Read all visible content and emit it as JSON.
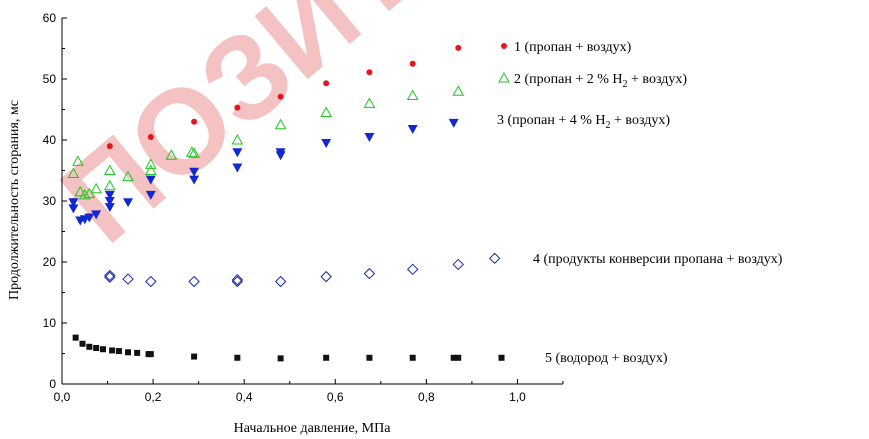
{
  "chart_data": {
    "type": "scatter",
    "title": "",
    "xlabel": "Начальное давление, МПа",
    "ylabel": "Продолжительность сгорания, мс",
    "xlim": [
      0.0,
      1.1
    ],
    "ylim": [
      0,
      60
    ],
    "x_ticks": [
      "0,0",
      "0,2",
      "0,4",
      "0,6",
      "0,8",
      "1,0"
    ],
    "y_ticks": [
      "0",
      "10",
      "20",
      "30",
      "40",
      "50",
      "60"
    ],
    "grid": false,
    "watermark": "ПОЗИТ",
    "series": [
      {
        "name": "1 (пропан + воздух)",
        "label_parts": [
          "1 (пропан + воздух)"
        ],
        "marker": "circle",
        "color": "#e8141e",
        "points": [
          [
            0.025,
            30.0
          ],
          [
            0.105,
            39.0
          ],
          [
            0.195,
            40.5
          ],
          [
            0.29,
            43.0
          ],
          [
            0.385,
            45.3
          ],
          [
            0.48,
            47.1
          ],
          [
            0.58,
            49.3
          ],
          [
            0.675,
            51.1
          ],
          [
            0.77,
            52.5
          ],
          [
            0.87,
            55.1
          ]
        ]
      },
      {
        "name": "2 (пропан + 2 % H2 + воздух)",
        "label_parts": [
          "2 (пропан + 2 % H",
          "2",
          " + воздух)"
        ],
        "marker": "triangle-up-open",
        "color": "#1ec81e",
        "points": [
          [
            0.025,
            34.5
          ],
          [
            0.035,
            36.5
          ],
          [
            0.04,
            31.5
          ],
          [
            0.05,
            31.0
          ],
          [
            0.06,
            31.2
          ],
          [
            0.075,
            32.0
          ],
          [
            0.105,
            32.5
          ],
          [
            0.105,
            35.0
          ],
          [
            0.145,
            34.0
          ],
          [
            0.195,
            35.0
          ],
          [
            0.195,
            36.0
          ],
          [
            0.24,
            37.5
          ],
          [
            0.285,
            38.0
          ],
          [
            0.29,
            37.8
          ],
          [
            0.385,
            40.0
          ],
          [
            0.48,
            42.5
          ],
          [
            0.58,
            44.5
          ],
          [
            0.675,
            46.0
          ],
          [
            0.77,
            47.3
          ],
          [
            0.87,
            48.0
          ]
        ]
      },
      {
        "name": "3 (пропан + 4 % H2 + воздух)",
        "label_parts": [
          "3 (пропан + 4 % H",
          "2",
          " + воздух)"
        ],
        "marker": "triangle-down",
        "color": "#1428d2",
        "points": [
          [
            0.025,
            29.8
          ],
          [
            0.025,
            28.8
          ],
          [
            0.04,
            26.8
          ],
          [
            0.05,
            27.0
          ],
          [
            0.06,
            27.3
          ],
          [
            0.075,
            27.8
          ],
          [
            0.105,
            29.0
          ],
          [
            0.105,
            30.0
          ],
          [
            0.105,
            31.0
          ],
          [
            0.145,
            29.8
          ],
          [
            0.195,
            31.0
          ],
          [
            0.195,
            33.5
          ],
          [
            0.29,
            33.5
          ],
          [
            0.29,
            34.8
          ],
          [
            0.385,
            35.5
          ],
          [
            0.385,
            38.0
          ],
          [
            0.48,
            37.5
          ],
          [
            0.48,
            38.0
          ],
          [
            0.58,
            39.5
          ],
          [
            0.675,
            40.5
          ],
          [
            0.77,
            41.8
          ],
          [
            0.86,
            42.8
          ]
        ]
      },
      {
        "name": "4 (продукты конверсии пропана + воздух)",
        "label_parts": [
          "4   (продукты конверсии пропана + воздух)"
        ],
        "marker": "diamond-open",
        "color": "#1428b4",
        "points": [
          [
            0.105,
            17.5
          ],
          [
            0.105,
            17.8
          ],
          [
            0.145,
            17.2
          ],
          [
            0.195,
            16.8
          ],
          [
            0.29,
            16.8
          ],
          [
            0.385,
            16.8
          ],
          [
            0.385,
            17.1
          ],
          [
            0.48,
            16.8
          ],
          [
            0.58,
            17.6
          ],
          [
            0.675,
            18.1
          ],
          [
            0.77,
            18.8
          ],
          [
            0.87,
            19.6
          ],
          [
            0.95,
            20.6
          ]
        ]
      },
      {
        "name": "5 (водород + воздух)",
        "label_parts": [
          "5   (водород + воздух)"
        ],
        "marker": "square",
        "color": "#111111",
        "points": [
          [
            0.03,
            7.6
          ],
          [
            0.045,
            6.6
          ],
          [
            0.06,
            6.1
          ],
          [
            0.075,
            5.9
          ],
          [
            0.09,
            5.7
          ],
          [
            0.11,
            5.5
          ],
          [
            0.125,
            5.4
          ],
          [
            0.145,
            5.2
          ],
          [
            0.165,
            5.1
          ],
          [
            0.19,
            4.9
          ],
          [
            0.195,
            4.9
          ],
          [
            0.29,
            4.5
          ],
          [
            0.385,
            4.3
          ],
          [
            0.48,
            4.2
          ],
          [
            0.58,
            4.3
          ],
          [
            0.675,
            4.3
          ],
          [
            0.77,
            4.3
          ],
          [
            0.86,
            4.3
          ],
          [
            0.87,
            4.3
          ],
          [
            0.965,
            4.3
          ]
        ]
      }
    ]
  }
}
